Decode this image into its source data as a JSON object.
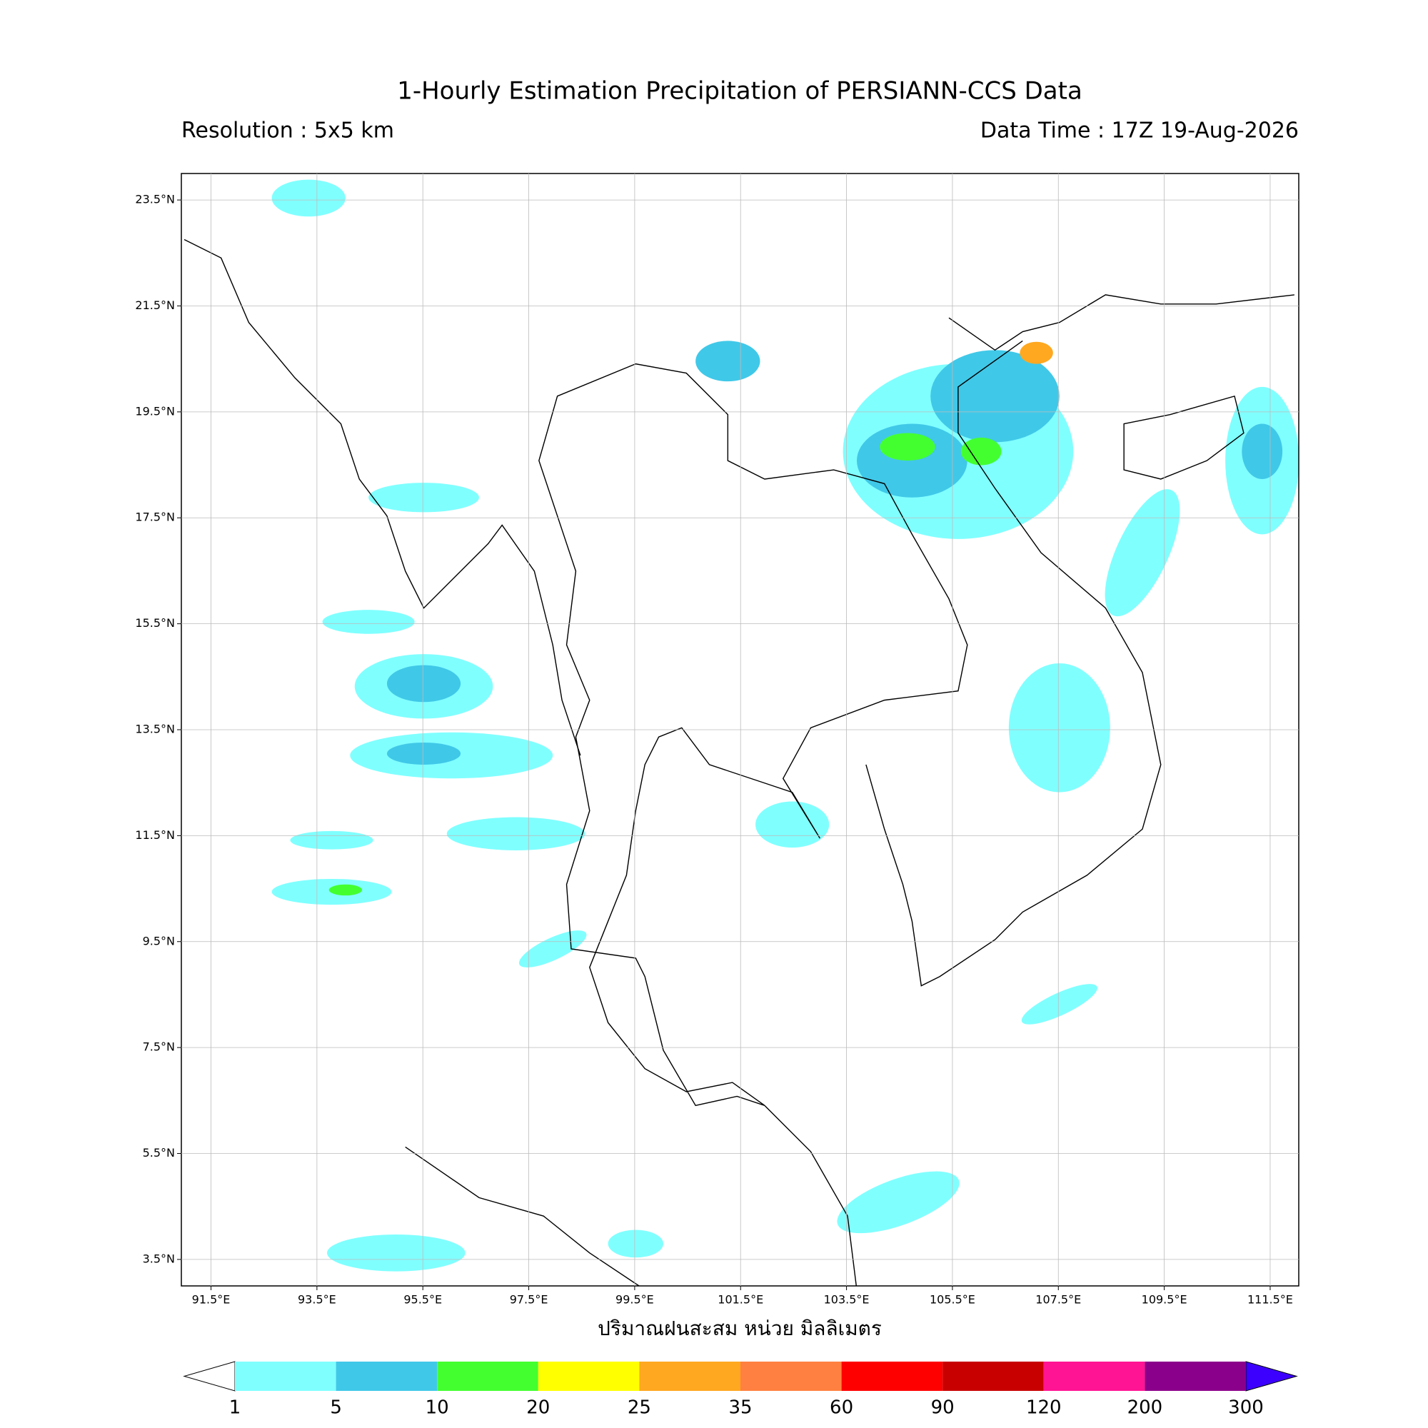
{
  "title": "1-Hourly Estimation Precipitation of PERSIANN-CCS Data",
  "resolution": "Resolution : 5x5 km",
  "data_time": "Data Time : 17Z 19-Aug-2026",
  "map": {
    "xlim": [
      90.94,
      112.04
    ],
    "ylim": [
      3.0,
      24.0
    ],
    "lat_ticks": [
      {
        "value": 23.5,
        "label": "23.5°N"
      },
      {
        "value": 21.5,
        "label": "21.5°N"
      },
      {
        "value": 19.5,
        "label": "19.5°N"
      },
      {
        "value": 17.5,
        "label": "17.5°N"
      },
      {
        "value": 15.5,
        "label": "15.5°N"
      },
      {
        "value": 13.5,
        "label": "13.5°N"
      },
      {
        "value": 11.5,
        "label": "11.5°N"
      },
      {
        "value": 9.5,
        "label": "9.5°N"
      },
      {
        "value": 7.5,
        "label": "7.5°N"
      },
      {
        "value": 5.5,
        "label": "5.5°N"
      },
      {
        "value": 3.5,
        "label": "3.5°N"
      }
    ],
    "lon_ticks": [
      {
        "value": 91.5,
        "label": "91.5°E"
      },
      {
        "value": 93.5,
        "label": "93.5°E"
      },
      {
        "value": 95.5,
        "label": "95.5°E"
      },
      {
        "value": 97.5,
        "label": "97.5°E"
      },
      {
        "value": 99.5,
        "label": "99.5°E"
      },
      {
        "value": 101.5,
        "label": "101.5°E"
      },
      {
        "value": 103.5,
        "label": "103.5°E"
      },
      {
        "value": 105.5,
        "label": "105.5°E"
      },
      {
        "value": 107.5,
        "label": "107.5°E"
      },
      {
        "value": 109.5,
        "label": "109.5°E"
      },
      {
        "value": 111.5,
        "label": "111.5°E"
      }
    ],
    "xlabel": "ปริมาณฝนสะสม หน่วย มิลลิเมตร"
  },
  "colorbar": {
    "levels": [
      1,
      5,
      10,
      20,
      25,
      35,
      60,
      90,
      120,
      200,
      300
    ],
    "colors": [
      "#80ffff",
      "#40c8e8",
      "#44ff30",
      "#ffff00",
      "#ffa820",
      "#ff8040",
      "#ff0000",
      "#c80000",
      "#ff1493",
      "#8b008b"
    ],
    "under_color": "#ffffff",
    "over_color": "#3c00ff"
  }
}
